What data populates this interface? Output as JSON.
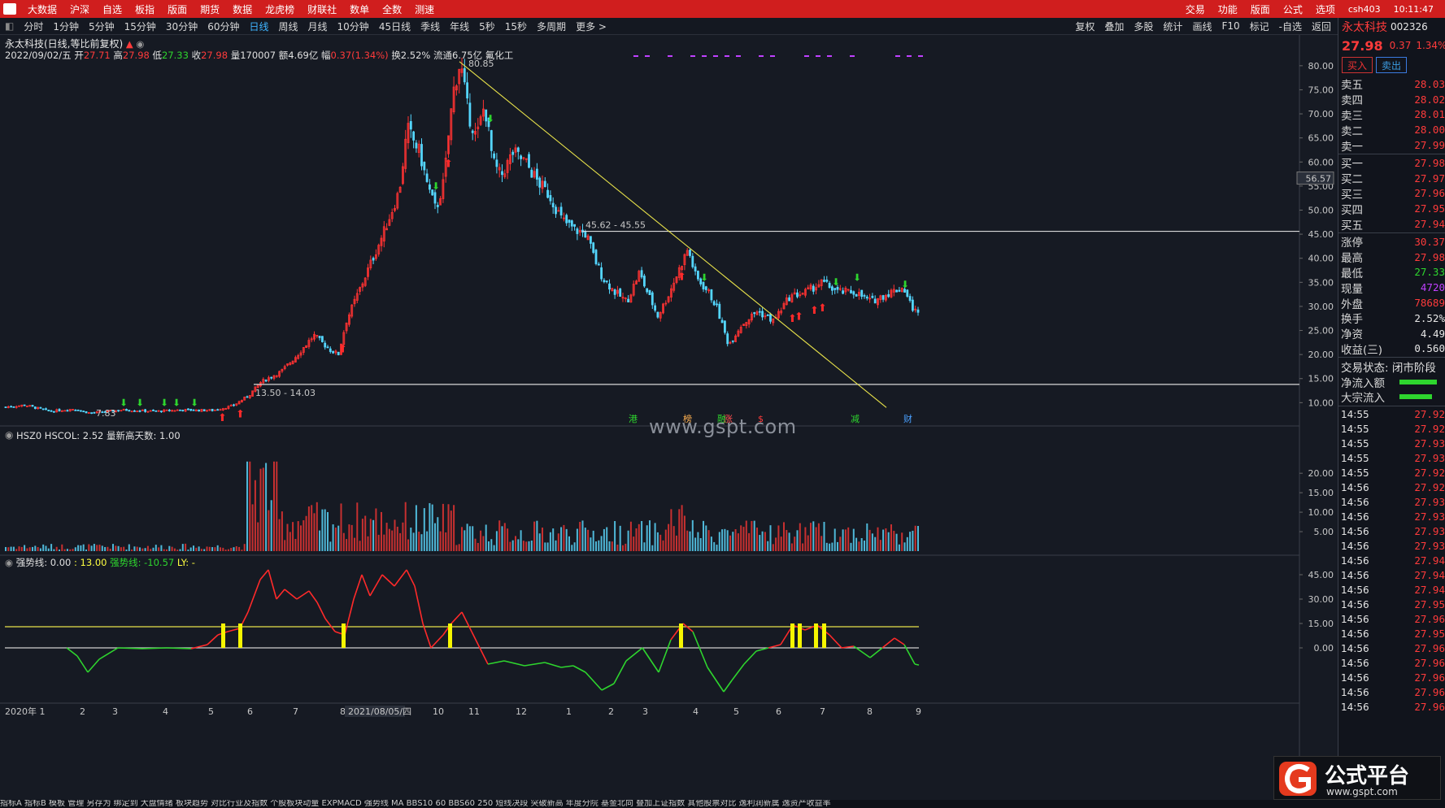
{
  "topbar": {
    "menus": [
      "大数据",
      "沪深",
      "自选",
      "板指",
      "版面",
      "期货",
      "数据",
      "龙虎榜",
      "财联社",
      "数单",
      "全数",
      "测速"
    ],
    "right": [
      "交易",
      "功能",
      "版面",
      "公式",
      "选项"
    ],
    "user": "csh403",
    "time": "10:11:47"
  },
  "toolbar": {
    "periods": [
      "分时",
      "1分钟",
      "5分钟",
      "15分钟",
      "30分钟",
      "60分钟",
      "日线",
      "周线",
      "月线",
      "10分钟",
      "45日线",
      "季线",
      "年线",
      "5秒",
      "15秒",
      "多周期",
      "更多 >"
    ],
    "active": "日线",
    "right": [
      "复权",
      "叠加",
      "多股",
      "统计",
      "画线",
      "F10",
      "标记",
      "-自选",
      "返回"
    ]
  },
  "header": {
    "title": "永太科技(日线,等比前复权)",
    "date": "2022/09/02/五",
    "open_label": "开",
    "open": "27.71",
    "high_label": "高",
    "high": "27.98",
    "low_label": "低",
    "low": "27.33",
    "close_label": "收",
    "close": "27.98",
    "volume": "量170007",
    "amount": "额4.69亿",
    "change_label": "幅",
    "change": "0.37(1.34%)",
    "turnover": "换2.52%",
    "float": "流通6.75亿",
    "sector": "氟化工"
  },
  "annotations": {
    "peak": "80.85",
    "low": "7.83",
    "line1": "45.62 - 45.55",
    "line2": "13.50 - 14.03",
    "crosshair": "56.57",
    "watermark": "www.gspt.com",
    "event_labels": [
      "港",
      "榜",
      "融",
      "涨",
      "$",
      "减",
      "财"
    ]
  },
  "volume_panel": {
    "header": "HSZ0 HSCOL: 2.52 量新高天数: 1.00"
  },
  "indicator_panel": {
    "name": "强势线",
    "v1": ": 0.00 ",
    "v2": ": 13.00 ",
    "line_label": "强势线",
    "v3": ": -10.57 ",
    "ly": "LY: -"
  },
  "xaxis": {
    "labels": [
      "2020年 1",
      "2",
      "3",
      "4",
      "5",
      "6",
      "7",
      "8",
      "2021/08/05/四",
      "10",
      "11",
      "12",
      "1",
      "2",
      "3",
      "4",
      "5",
      "6",
      "7",
      "8",
      "9"
    ]
  },
  "bottom_tabs": "指标A 指标B 模板 管理 另存为 绑定到 大盘情绪 板块趋势 对比行业及指数 个股板块动量 EXPMACD 强势线 MA BBS10 60 BBS60 250 短线决段 突破新高 年度分院 基金北向 叠加上证指数 其他股票对比 逸利润新属 逸资产收益率",
  "right_panel": {
    "name": "永太科技",
    "code": "002326",
    "price": "27.98",
    "chg": "0.37",
    "pct": "1.34%",
    "buy": "买入",
    "sell": "卖出",
    "asks": [
      [
        "卖五",
        "28.03"
      ],
      [
        "卖四",
        "28.02"
      ],
      [
        "卖三",
        "28.01"
      ],
      [
        "卖二",
        "28.00"
      ],
      [
        "卖一",
        "27.99"
      ]
    ],
    "bids": [
      [
        "买一",
        "27.98"
      ],
      [
        "买二",
        "27.97"
      ],
      [
        "买三",
        "27.96"
      ],
      [
        "买四",
        "27.95"
      ],
      [
        "买五",
        "27.94"
      ]
    ],
    "stats": [
      [
        "涨停",
        "30.37",
        "red"
      ],
      [
        "最高",
        "27.98",
        "red"
      ],
      [
        "最低",
        "27.33",
        "green"
      ],
      [
        "现量",
        "4720",
        "purple"
      ],
      [
        "外盘",
        "78689",
        "red"
      ],
      [
        "换手",
        "2.52%",
        "white"
      ],
      [
        "净资",
        "4.49",
        "white"
      ],
      [
        "收益(三)",
        "0.560",
        "white"
      ]
    ],
    "trade_status": "交易状态: 闭市阶段",
    "net_in": "净流入额",
    "big_in": "大宗流入",
    "ticks": [
      [
        "14:55",
        "27.92"
      ],
      [
        "14:55",
        "27.92"
      ],
      [
        "14:55",
        "27.93"
      ],
      [
        "14:55",
        "27.93"
      ],
      [
        "14:55",
        "27.92"
      ],
      [
        "14:56",
        "27.92"
      ],
      [
        "14:56",
        "27.93"
      ],
      [
        "14:56",
        "27.93"
      ],
      [
        "14:56",
        "27.93"
      ],
      [
        "14:56",
        "27.93"
      ],
      [
        "14:56",
        "27.94"
      ],
      [
        "14:56",
        "27.94"
      ],
      [
        "14:56",
        "27.94"
      ],
      [
        "14:56",
        "27.95"
      ],
      [
        "14:56",
        "27.96"
      ],
      [
        "14:56",
        "27.95"
      ],
      [
        "14:56",
        "27.96"
      ],
      [
        "14:56",
        "27.96"
      ],
      [
        "14:56",
        "27.96"
      ],
      [
        "14:56",
        "27.96"
      ],
      [
        "14:56",
        "27.96"
      ]
    ]
  },
  "logo": {
    "text": "公式平台",
    "url": "www.gspt.com"
  },
  "chart_data": {
    "type": "candlestick",
    "price_ticks": [
      80,
      75,
      70,
      65,
      60,
      55,
      50,
      45,
      40,
      35,
      30,
      25,
      20,
      15,
      10
    ],
    "price_range": [
      5.5,
      82
    ],
    "vol_ticks": [
      20,
      15,
      10,
      5
    ],
    "vol_range": [
      0,
      24
    ],
    "ind_ticks": [
      45,
      30,
      15,
      0
    ],
    "ind_range": [
      -28,
      52
    ],
    "close_path": [
      [
        0,
        9
      ],
      [
        30,
        9.5
      ],
      [
        60,
        8.2
      ],
      [
        90,
        8.7
      ],
      [
        110,
        7.83
      ],
      [
        150,
        8.5
      ],
      [
        190,
        8.2
      ],
      [
        220,
        8.5
      ],
      [
        260,
        8.4
      ],
      [
        285,
        9.3
      ],
      [
        305,
        11.5
      ],
      [
        320,
        14.3
      ],
      [
        345,
        16.5
      ],
      [
        365,
        20
      ],
      [
        385,
        24
      ],
      [
        405,
        21
      ],
      [
        415,
        20
      ],
      [
        425,
        27
      ],
      [
        445,
        35
      ],
      [
        470,
        45
      ],
      [
        490,
        54
      ],
      [
        500,
        67
      ],
      [
        515,
        62
      ],
      [
        525,
        55
      ],
      [
        535,
        50
      ],
      [
        545,
        56
      ],
      [
        552,
        68
      ],
      [
        557,
        75
      ],
      [
        565,
        80.85
      ],
      [
        575,
        70
      ],
      [
        585,
        65
      ],
      [
        595,
        72
      ],
      [
        605,
        60
      ],
      [
        615,
        57
      ],
      [
        630,
        62
      ],
      [
        645,
        60
      ],
      [
        660,
        56
      ],
      [
        675,
        53
      ],
      [
        690,
        48
      ],
      [
        705,
        46
      ],
      [
        720,
        45
      ],
      [
        730,
        40
      ],
      [
        740,
        36
      ],
      [
        755,
        33
      ],
      [
        770,
        31
      ],
      [
        785,
        37
      ],
      [
        795,
        33
      ],
      [
        808,
        28
      ],
      [
        820,
        32
      ],
      [
        835,
        38
      ],
      [
        845,
        42
      ],
      [
        855,
        36
      ],
      [
        870,
        33
      ],
      [
        880,
        30
      ],
      [
        895,
        22
      ],
      [
        910,
        26
      ],
      [
        930,
        29
      ],
      [
        950,
        27
      ],
      [
        970,
        32
      ],
      [
        990,
        33
      ],
      [
        1010,
        35
      ],
      [
        1030,
        33
      ],
      [
        1050,
        33
      ],
      [
        1070,
        31
      ],
      [
        1095,
        33
      ],
      [
        1110,
        34
      ],
      [
        1120,
        30
      ],
      [
        1130,
        27.98
      ]
    ],
    "indicator_path": [
      [
        82,
        0
      ],
      [
        95,
        -5
      ],
      [
        108,
        -15
      ],
      [
        122,
        -7
      ],
      [
        145,
        0
      ],
      [
        175,
        -0.5
      ],
      [
        205,
        0
      ],
      [
        235,
        -0.5
      ],
      [
        255,
        2
      ],
      [
        268,
        8
      ],
      [
        280,
        10
      ],
      [
        295,
        12
      ],
      [
        305,
        22
      ],
      [
        320,
        42
      ],
      [
        330,
        48
      ],
      [
        340,
        30
      ],
      [
        350,
        36
      ],
      [
        365,
        30
      ],
      [
        380,
        35
      ],
      [
        390,
        28
      ],
      [
        400,
        18
      ],
      [
        412,
        10
      ],
      [
        424,
        8
      ],
      [
        435,
        30
      ],
      [
        445,
        45
      ],
      [
        455,
        32
      ],
      [
        470,
        45
      ],
      [
        485,
        38
      ],
      [
        500,
        48
      ],
      [
        510,
        38
      ],
      [
        520,
        15
      ],
      [
        530,
        0
      ],
      [
        545,
        8
      ],
      [
        555,
        15
      ],
      [
        568,
        22
      ],
      [
        580,
        10
      ],
      [
        600,
        -10
      ],
      [
        620,
        -8
      ],
      [
        645,
        -11
      ],
      [
        670,
        -9
      ],
      [
        690,
        -12
      ],
      [
        705,
        -11
      ],
      [
        720,
        -15
      ],
      [
        740,
        -26
      ],
      [
        755,
        -22
      ],
      [
        770,
        -8
      ],
      [
        790,
        0
      ],
      [
        810,
        -15
      ],
      [
        825,
        5
      ],
      [
        840,
        15
      ],
      [
        852,
        10
      ],
      [
        870,
        -12
      ],
      [
        890,
        -27
      ],
      [
        900,
        -20
      ],
      [
        915,
        -10
      ],
      [
        930,
        -2
      ],
      [
        945,
        0
      ],
      [
        960,
        2
      ],
      [
        975,
        14
      ],
      [
        990,
        11
      ],
      [
        1005,
        14
      ],
      [
        1020,
        8
      ],
      [
        1035,
        0
      ],
      [
        1050,
        1
      ],
      [
        1070,
        -6
      ],
      [
        1085,
        0
      ],
      [
        1100,
        6
      ],
      [
        1112,
        2
      ],
      [
        1125,
        -10
      ],
      [
        1130,
        -10.57
      ]
    ],
    "hlines": [
      45.6,
      13.8
    ],
    "ind_hlines": [
      13,
      0
    ],
    "trendline": [
      [
        565,
        80.85
      ],
      [
        1090,
        9
      ]
    ],
    "signal_bars": [
      274,
      295,
      422,
      553,
      837,
      974,
      983,
      1003,
      1013
    ]
  }
}
